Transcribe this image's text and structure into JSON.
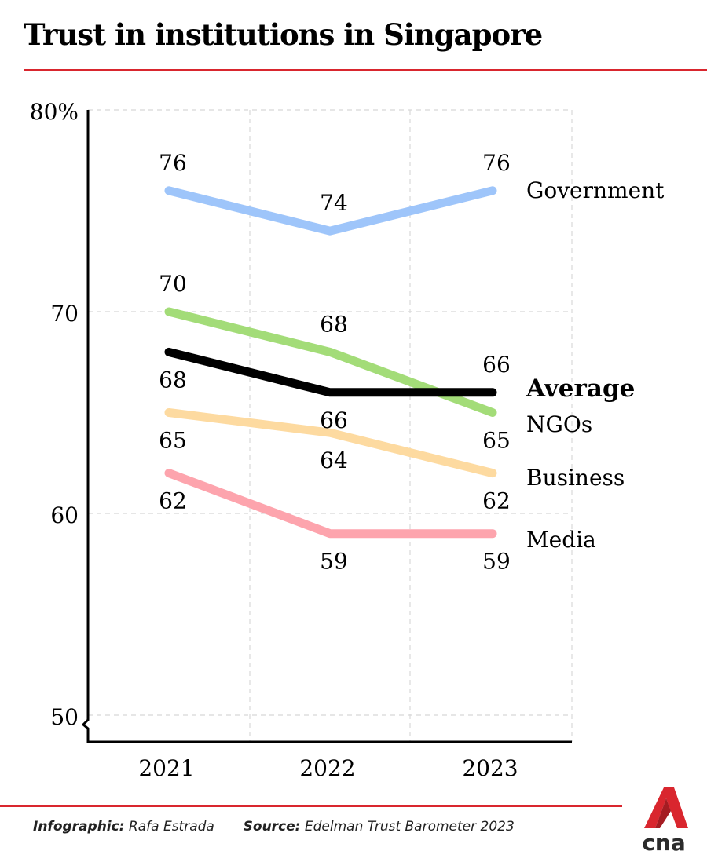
{
  "title": "Trust in institutions in Singapore",
  "footer": {
    "infographic_label": "Infographic:",
    "infographic_value": "Rafa Estrada",
    "source_label": "Source:",
    "source_value": "Edelman Trust Barometer 2023"
  },
  "logo": {
    "text": "cna",
    "color": "#d9262e"
  },
  "chart_data": {
    "type": "line",
    "title": "Trust in institutions in Singapore",
    "xlabel": "",
    "ylabel": "",
    "x": [
      "2021",
      "2022",
      "2023"
    ],
    "ylim": [
      50,
      80
    ],
    "yticks": [
      50,
      60,
      70,
      80
    ],
    "ytick_labels": [
      "50",
      "60",
      "70",
      "80%"
    ],
    "grid": true,
    "legend": "direct-labels-right",
    "series": [
      {
        "name": "Government",
        "values": [
          76,
          74,
          76
        ],
        "color": "#9ec5fa",
        "bold": false
      },
      {
        "name": "NGOs",
        "values": [
          70,
          68,
          65
        ],
        "color": "#a3dc78",
        "bold": false
      },
      {
        "name": "Average",
        "values": [
          68,
          66,
          66
        ],
        "color": "#000000",
        "bold": true
      },
      {
        "name": "Business",
        "values": [
          65,
          64,
          62
        ],
        "color": "#fddaa0",
        "bold": false
      },
      {
        "name": "Media",
        "values": [
          62,
          59,
          59
        ],
        "color": "#fda4ad",
        "bold": false
      }
    ]
  }
}
